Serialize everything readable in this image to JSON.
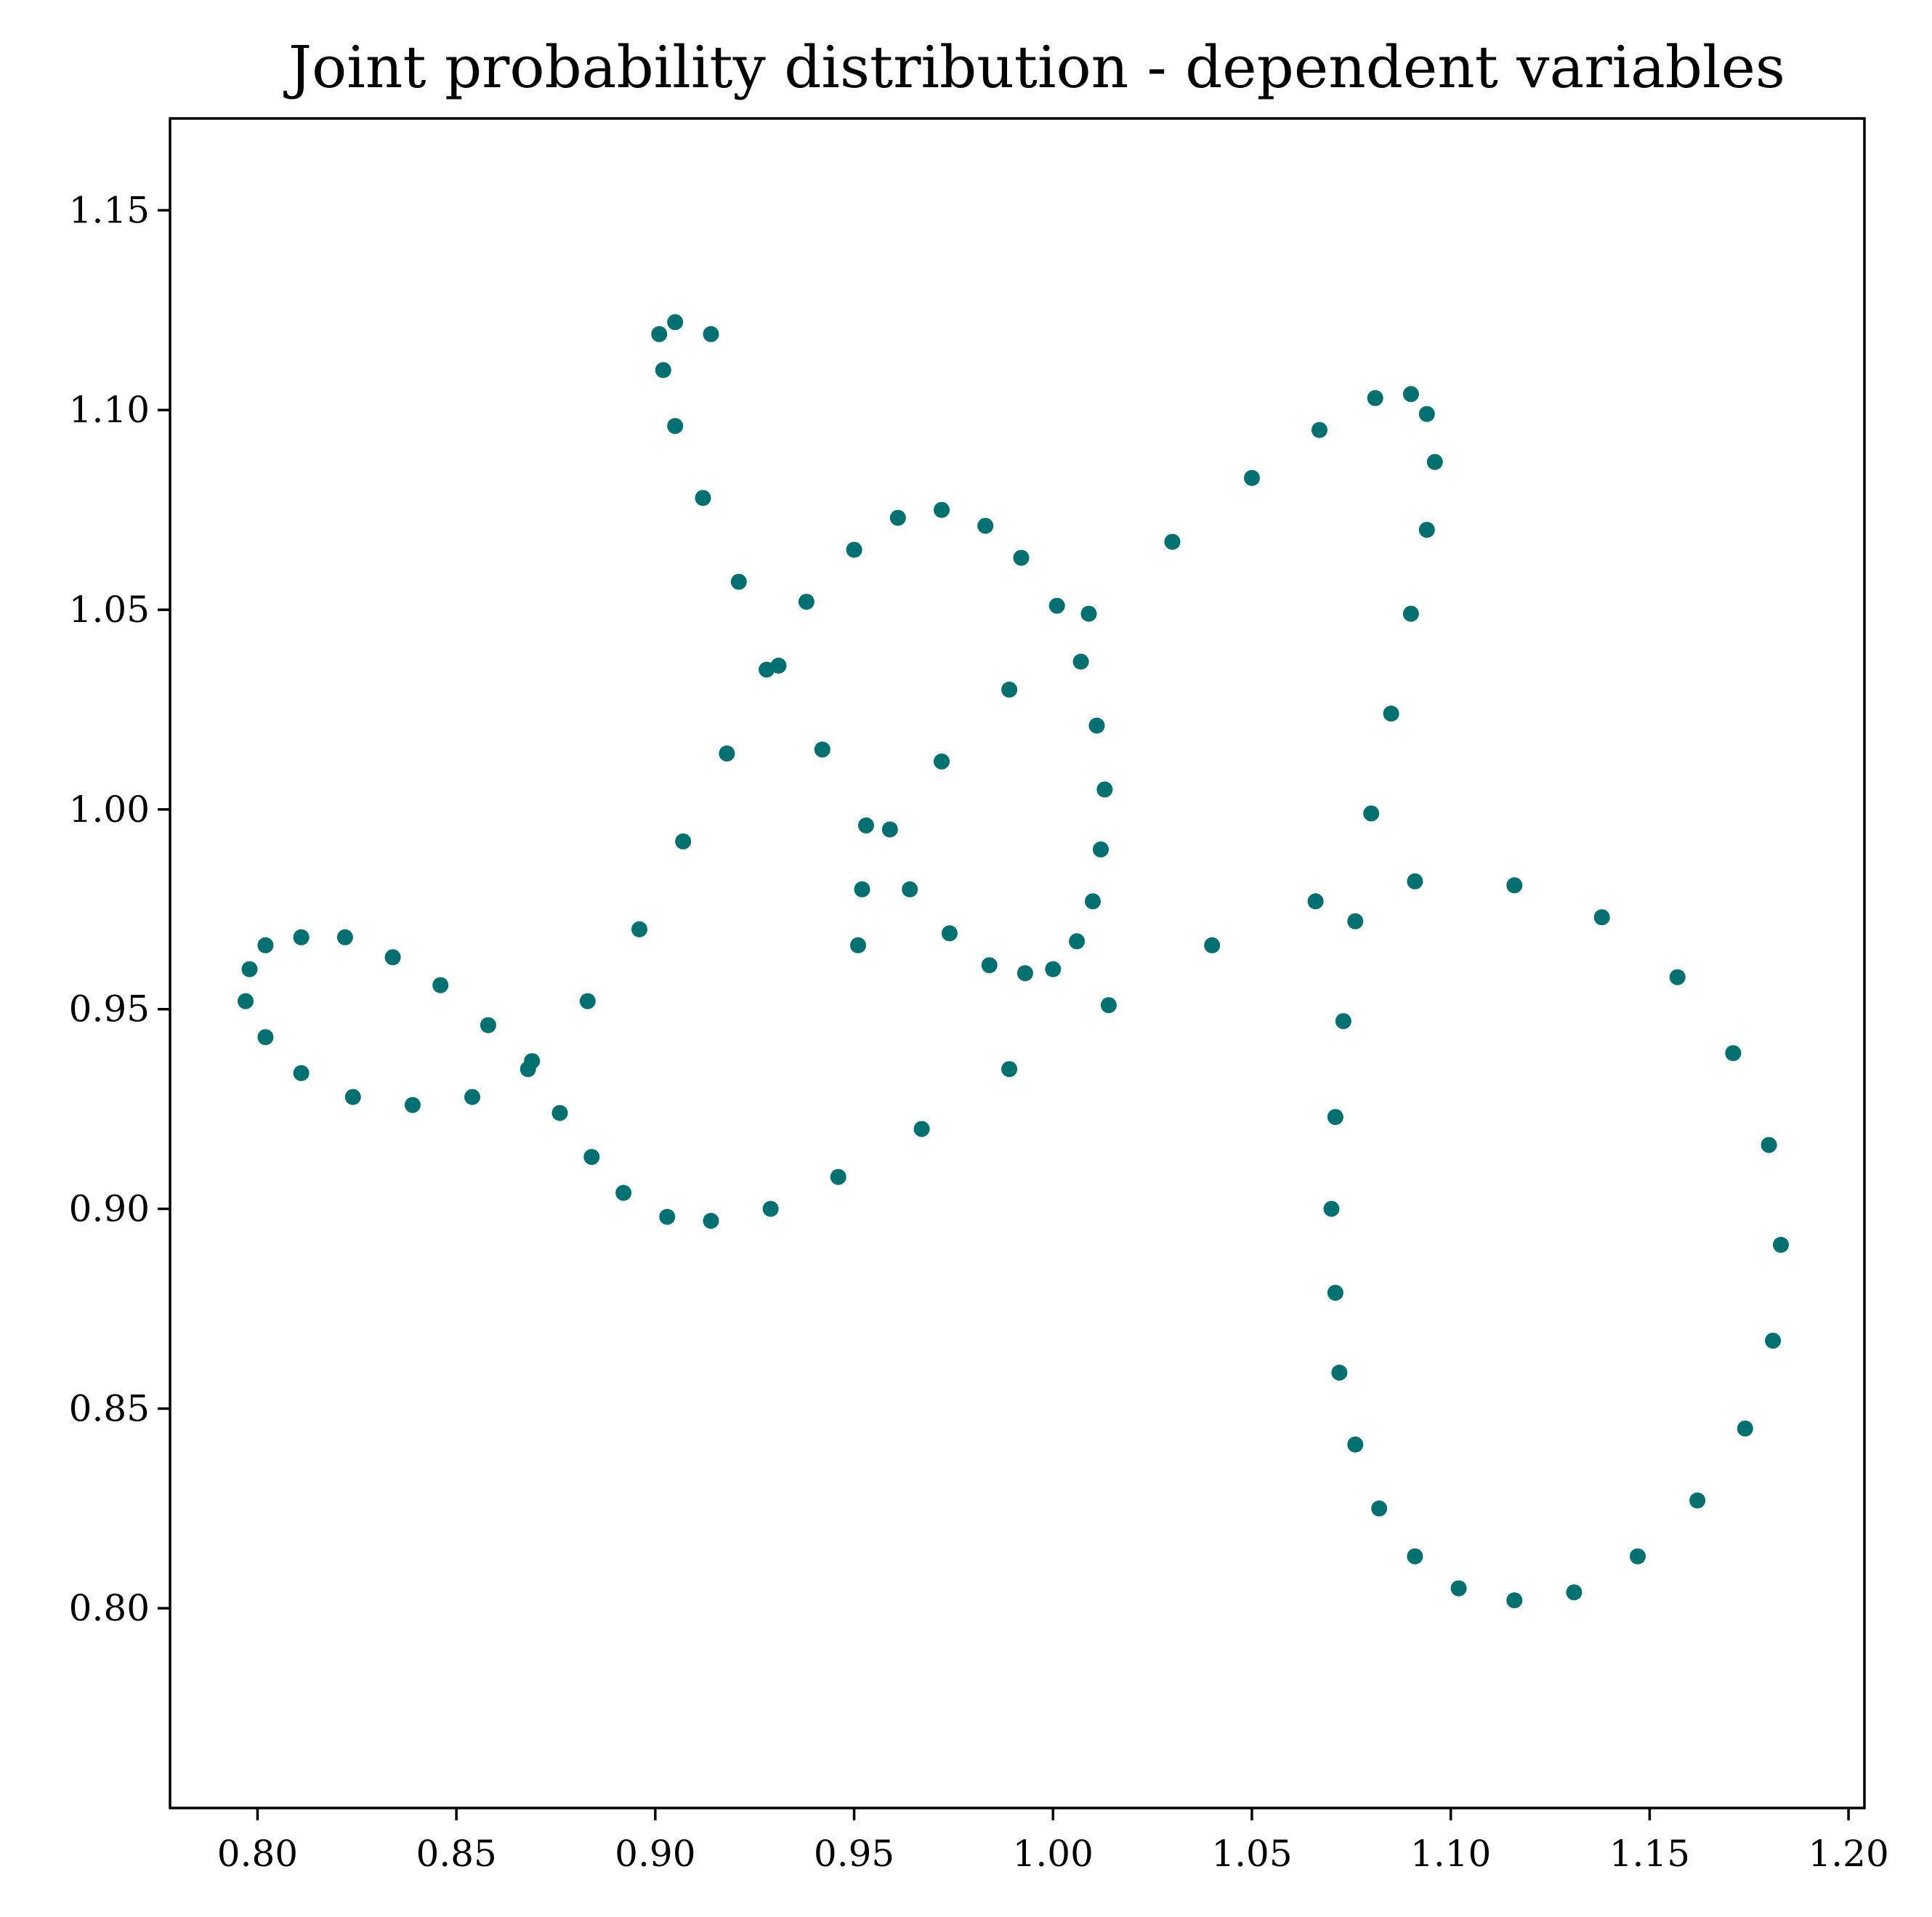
{
  "chart_data": {
    "type": "scatter",
    "title": "Joint probability distribution - dependent variables",
    "xlabel": "",
    "ylabel": "",
    "xlim": [
      0.778,
      1.204
    ],
    "ylim": [
      0.75,
      1.173
    ],
    "xticks": [
      0.8,
      0.85,
      0.9,
      0.95,
      1.0,
      1.05,
      1.1,
      1.15,
      1.2
    ],
    "yticks": [
      0.8,
      0.85,
      0.9,
      0.95,
      1.0,
      1.05,
      1.1,
      1.15
    ],
    "xtick_labels": [
      "0.80",
      "0.85",
      "0.90",
      "0.95",
      "1.00",
      "1.05",
      "1.10",
      "1.15",
      "1.20"
    ],
    "ytick_labels": [
      "0.80",
      "0.85",
      "0.90",
      "0.95",
      "1.00",
      "1.05",
      "1.10",
      "1.15"
    ],
    "grid": false,
    "color": "#007070",
    "series": [
      {
        "x": [
          0.797,
          0.798,
          0.802,
          0.802,
          0.811,
          0.811,
          0.822,
          0.824,
          0.834,
          0.839,
          0.846,
          0.854,
          0.858,
          0.868,
          0.869,
          0.876,
          0.883,
          0.884,
          0.892,
          0.896,
          0.901,
          0.902,
          0.903,
          0.905,
          0.905,
          0.907,
          0.912,
          0.914,
          0.914,
          0.918,
          0.921,
          0.928,
          0.929,
          0.931,
          0.938,
          0.942,
          0.946,
          0.95,
          0.951,
          0.952,
          0.953,
          0.959,
          0.961,
          0.964,
          0.967,
          0.972,
          0.972,
          0.974,
          0.983,
          0.984,
          0.989,
          0.989,
          0.992,
          0.993,
          1.0,
          1.001,
          1.006,
          1.007,
          1.009,
          1.01,
          1.011,
          1.012,
          1.013,
          1.014,
          1.03,
          1.04,
          1.05,
          1.066,
          1.067,
          1.07,
          1.071,
          1.071,
          1.072,
          1.073,
          1.076,
          1.076,
          1.08,
          1.081,
          1.082,
          1.085,
          1.09,
          1.09,
          1.091,
          1.091,
          1.094,
          1.094,
          1.096,
          1.102,
          1.116,
          1.116,
          1.131,
          1.138,
          1.147,
          1.157,
          1.162,
          1.171,
          1.174,
          1.18,
          1.181,
          1.183
        ],
        "y": [
          0.952,
          0.96,
          0.943,
          0.966,
          0.934,
          0.968,
          0.968,
          0.928,
          0.963,
          0.926,
          0.956,
          0.928,
          0.946,
          0.935,
          0.937,
          0.924,
          0.952,
          0.913,
          0.904,
          0.97,
          1.119,
          1.11,
          0.898,
          1.122,
          1.096,
          0.992,
          1.078,
          1.119,
          0.897,
          1.014,
          1.057,
          1.035,
          0.9,
          1.036,
          1.052,
          1.015,
          0.908,
          1.065,
          0.966,
          0.98,
          0.996,
          0.995,
          1.073,
          0.98,
          0.92,
          1.075,
          1.012,
          0.969,
          1.071,
          0.961,
          1.03,
          0.935,
          1.063,
          0.959,
          0.96,
          1.051,
          0.967,
          1.037,
          1.049,
          0.977,
          1.021,
          0.99,
          1.005,
          0.951,
          1.067,
          0.966,
          1.083,
          0.977,
          1.095,
          0.9,
          0.879,
          0.923,
          0.859,
          0.947,
          0.972,
          0.841,
          0.999,
          1.103,
          0.825,
          1.024,
          1.104,
          1.049,
          0.982,
          0.813,
          1.099,
          1.07,
          1.087,
          0.805,
          0.981,
          0.802,
          0.804,
          0.973,
          0.813,
          0.958,
          0.827,
          0.939,
          0.845,
          0.916,
          0.867,
          0.891
        ]
      }
    ]
  }
}
